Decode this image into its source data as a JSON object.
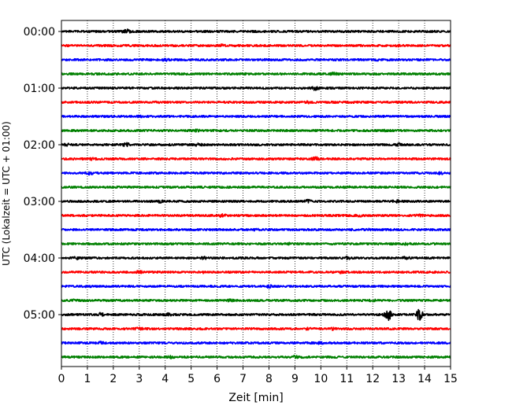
{
  "chart_data": {
    "type": "line",
    "xlabel": "Zeit  [min]",
    "ylabel": "UTC (Lokalzeit = UTC + 01:00)",
    "xlim": [
      0,
      15
    ],
    "x_ticks": [
      "0",
      "1",
      "2",
      "3",
      "4",
      "5",
      "6",
      "7",
      "8",
      "9",
      "10",
      "11",
      "12",
      "13",
      "14",
      "15"
    ],
    "y_ticks": [
      "00:00",
      "01:00",
      "02:00",
      "03:00",
      "04:00",
      "05:00"
    ],
    "grid": "vertical dotted",
    "series_colors": [
      "#000000",
      "#ff0000",
      "#0000ff",
      "#008000"
    ],
    "series": [
      {
        "start": "00:00",
        "color": "#000000",
        "events": [
          [
            2.5,
            2.0
          ]
        ]
      },
      {
        "start": "00:15",
        "color": "#ff0000",
        "events": [
          [
            6.2,
            1.5
          ],
          [
            13.0,
            1.2
          ]
        ]
      },
      {
        "start": "00:30",
        "color": "#0000ff",
        "events": [
          [
            4.0,
            1.5
          ],
          [
            12.2,
            1.2
          ]
        ]
      },
      {
        "start": "00:45",
        "color": "#008000",
        "events": [
          [
            10.5,
            1.5
          ],
          [
            14.8,
            1.2
          ]
        ]
      },
      {
        "start": "01:00",
        "color": "#000000",
        "events": [
          [
            9.8,
            2.0
          ]
        ]
      },
      {
        "start": "01:15",
        "color": "#ff0000",
        "events": [
          [
            3.7,
            1.3
          ],
          [
            9.5,
            1.4
          ]
        ]
      },
      {
        "start": "01:30",
        "color": "#0000ff",
        "events": [
          [
            3.0,
            1.2
          ]
        ]
      },
      {
        "start": "01:45",
        "color": "#008000",
        "events": [
          [
            5.2,
            1.3
          ],
          [
            12.5,
            1.2
          ]
        ]
      },
      {
        "start": "02:00",
        "color": "#000000",
        "events": [
          [
            0.2,
            1.4
          ],
          [
            2.5,
            1.8
          ],
          [
            5.3,
            1.6
          ],
          [
            13.0,
            1.5
          ]
        ]
      },
      {
        "start": "02:15",
        "color": "#ff0000",
        "events": [
          [
            1.2,
            1.5
          ],
          [
            9.8,
            1.8
          ]
        ]
      },
      {
        "start": "02:30",
        "color": "#0000ff",
        "events": [
          [
            1.1,
            1.6
          ],
          [
            14.6,
            1.5
          ]
        ]
      },
      {
        "start": "02:45",
        "color": "#008000",
        "events": [
          [
            5.7,
            1.2
          ],
          [
            11.0,
            1.3
          ]
        ]
      },
      {
        "start": "03:00",
        "color": "#000000",
        "events": [
          [
            3.8,
            1.5
          ],
          [
            9.5,
            1.6
          ],
          [
            12.9,
            1.8
          ]
        ]
      },
      {
        "start": "03:15",
        "color": "#ff0000",
        "events": [
          [
            6.2,
            1.8
          ],
          [
            11.5,
            1.3
          ],
          [
            13.8,
            1.4
          ]
        ]
      },
      {
        "start": "03:30",
        "color": "#0000ff",
        "events": [
          [
            7.5,
            1.3
          ],
          [
            11.8,
            1.3
          ]
        ]
      },
      {
        "start": "03:45",
        "color": "#008000",
        "events": [
          [
            8.8,
            1.3
          ],
          [
            13.3,
            1.3
          ]
        ]
      },
      {
        "start": "04:00",
        "color": "#000000",
        "events": [
          [
            0.6,
            1.4
          ],
          [
            5.5,
            1.4
          ],
          [
            11.0,
            1.5
          ],
          [
            13.3,
            1.6
          ]
        ]
      },
      {
        "start": "04:15",
        "color": "#ff0000",
        "events": [
          [
            3.0,
            1.5
          ],
          [
            5.5,
            1.3
          ],
          [
            10.8,
            1.3
          ]
        ]
      },
      {
        "start": "04:30",
        "color": "#0000ff",
        "events": [
          [
            1.0,
            1.4
          ],
          [
            8.0,
            1.5
          ]
        ]
      },
      {
        "start": "04:45",
        "color": "#008000",
        "events": [
          [
            0.5,
            1.3
          ],
          [
            6.5,
            1.4
          ],
          [
            12.0,
            1.4
          ]
        ]
      },
      {
        "start": "05:00",
        "color": "#000000",
        "events": [
          [
            1.5,
            1.8
          ],
          [
            4.1,
            1.6
          ],
          [
            12.6,
            4.5
          ],
          [
            13.8,
            4.0
          ]
        ]
      },
      {
        "start": "05:15",
        "color": "#ff0000",
        "events": [
          [
            3.0,
            1.5
          ],
          [
            9.5,
            1.6
          ],
          [
            10.5,
            1.5
          ]
        ]
      },
      {
        "start": "05:30",
        "color": "#0000ff",
        "events": [
          [
            1.5,
            1.5
          ],
          [
            10.0,
            1.4
          ]
        ]
      },
      {
        "start": "05:45",
        "color": "#008000",
        "events": [
          [
            4.2,
            1.4
          ],
          [
            9.0,
            1.6
          ]
        ]
      }
    ]
  }
}
